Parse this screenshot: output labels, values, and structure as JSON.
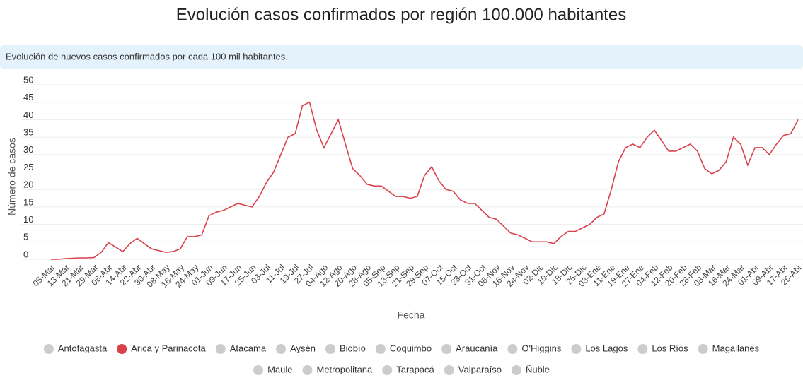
{
  "chart_data": {
    "type": "line",
    "title": "Evolución casos confirmados por región 100.000 habitantes",
    "subtitle": "Evolución de nuevos casos confirmados por cada 100 mil habitantes.",
    "x_label": "Fecha",
    "y_label": "Número de casos",
    "categories": [
      "05-Mar",
      null,
      "13-Mar",
      null,
      "21-Mar",
      null,
      "29-Mar",
      null,
      "06-Abr",
      null,
      "14-Abr",
      null,
      "22-Abr",
      null,
      "30-Abr",
      null,
      "08-May",
      null,
      "16-May",
      null,
      "24-May",
      null,
      "01-Jun",
      null,
      "09-Jun",
      null,
      "17-Jun",
      null,
      "25-Jun",
      null,
      "03-Jul",
      null,
      "11-Jul",
      null,
      "19-Jul",
      null,
      "27-Jul",
      null,
      "04-Ago",
      null,
      "12-Ago",
      null,
      "20-Ago",
      null,
      "28-Ago",
      null,
      "05-Sep",
      null,
      "13-Sep",
      null,
      "21-Sep",
      null,
      "29-Sep",
      null,
      "07-Oct",
      null,
      "15-Oct",
      null,
      "23-Oct",
      null,
      "31-Oct",
      null,
      "08-Nov",
      null,
      "16-Nov",
      null,
      "24-Nov",
      null,
      "02-Dic",
      null,
      "10-Dic",
      null,
      "18-Dic",
      null,
      "26-Dic",
      null,
      "03-Ene",
      null,
      "11-Ene",
      null,
      "19-Ene",
      null,
      "27-Ene",
      null,
      "04-Feb",
      null,
      "12-Feb",
      null,
      "20-Feb",
      null,
      "28-Feb",
      null,
      "08-Mar",
      null,
      "16-Mar",
      null,
      "24-Mar",
      null,
      "01-Abr",
      null,
      "09-Abr",
      null,
      "17-Abr",
      null,
      "25-Abr"
    ],
    "values": [
      0,
      0,
      0.2,
      0.3,
      0.4,
      0.4,
      0.5,
      2,
      4.8,
      3.5,
      2.2,
      4.5,
      6,
      4.5,
      3,
      2.5,
      2,
      2.2,
      3,
      6.5,
      6.5,
      7,
      12.5,
      13.5,
      14,
      15,
      16,
      15.5,
      15,
      18,
      22,
      25,
      30,
      35,
      36,
      44,
      45,
      37,
      32,
      36,
      40,
      33,
      26,
      24,
      21.5,
      21,
      21,
      19.5,
      18,
      18,
      17.5,
      18,
      24,
      26.5,
      22.5,
      20,
      19.5,
      17,
      16,
      16,
      14,
      12,
      11.5,
      9.5,
      7.5,
      7,
      6,
      5,
      5,
      5,
      4.5,
      6.5,
      8,
      8,
      9,
      10,
      12,
      13,
      20,
      28,
      32,
      33,
      32,
      35,
      37,
      34,
      31,
      31,
      32,
      33,
      31,
      26,
      24.5,
      25.5,
      28,
      35,
      33,
      27,
      32,
      32,
      30,
      33,
      35.5,
      36,
      40
    ],
    "color": "#d9414b",
    "ylim": [
      0,
      50
    ],
    "yticks": [
      0,
      5,
      10,
      15,
      20,
      25,
      30,
      35,
      40,
      45,
      50
    ],
    "grid": true,
    "legend": [
      {
        "name": "Antofagasta",
        "color": "#cccccc"
      },
      {
        "name": "Arica y Parinacota",
        "color": "#d9414b"
      },
      {
        "name": "Atacama",
        "color": "#cccccc"
      },
      {
        "name": "Aysén",
        "color": "#cccccc"
      },
      {
        "name": "Biobío",
        "color": "#cccccc"
      },
      {
        "name": "Coquimbo",
        "color": "#cccccc"
      },
      {
        "name": "Araucanía",
        "color": "#cccccc"
      },
      {
        "name": "O'Higgins",
        "color": "#cccccc"
      },
      {
        "name": "Los Lagos",
        "color": "#cccccc"
      },
      {
        "name": "Los Ríos",
        "color": "#cccccc"
      },
      {
        "name": "Magallanes",
        "color": "#cccccc"
      },
      {
        "name": "Maule",
        "color": "#cccccc"
      },
      {
        "name": "Metropolitana",
        "color": "#cccccc"
      },
      {
        "name": "Tarapacá",
        "color": "#cccccc"
      },
      {
        "name": "Valparaíso",
        "color": "#cccccc"
      },
      {
        "name": "Ñuble",
        "color": "#cccccc"
      }
    ]
  }
}
